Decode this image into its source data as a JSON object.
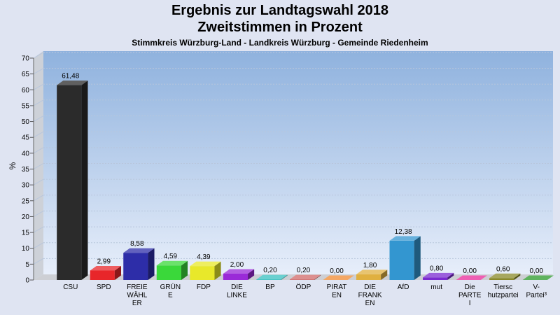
{
  "chart_data": {
    "type": "bar",
    "title": "Ergebnis zur Landtagswahl 2018",
    "subtitle": "Zweitstimmen in Prozent",
    "subtitle2": "Stimmkreis Würzburg-Land - Landkreis Würzburg - Gemeinde Riedenheim",
    "ylabel": "%",
    "ylim": [
      0,
      70
    ],
    "yticks": [
      0,
      5,
      10,
      15,
      20,
      25,
      30,
      35,
      40,
      45,
      50,
      55,
      60,
      65,
      70
    ],
    "grid": true,
    "categories": [
      [
        "CSU"
      ],
      [
        "SPD"
      ],
      [
        "FREIE",
        "WÄHL",
        "ER"
      ],
      [
        "GRÜN",
        "E"
      ],
      [
        "FDP"
      ],
      [
        "DIE",
        "LINKE"
      ],
      [
        "BP"
      ],
      [
        "ÖDP"
      ],
      [
        "PIRAT",
        "EN"
      ],
      [
        "DIE",
        "FRANK",
        "EN"
      ],
      [
        "AfD"
      ],
      [
        "mut"
      ],
      [
        "Die",
        "PARTE",
        "I"
      ],
      [
        "Tiersc",
        "hutzpartei"
      ],
      [
        "V-",
        "Partei³"
      ]
    ],
    "values": [
      61.48,
      2.99,
      8.58,
      4.59,
      4.39,
      2.0,
      0.2,
      0.2,
      0.0,
      1.8,
      12.38,
      0.8,
      0.0,
      0.6,
      0.0
    ],
    "value_labels": [
      "61,48",
      "2,99",
      "8,58",
      "4,59",
      "4,39",
      "2,00",
      "0,20",
      "0,20",
      "0,00",
      "1,80",
      "12,38",
      "0,80",
      "0,00",
      "0,60",
      "0,00"
    ],
    "colors": [
      "#2b2b2b",
      "#e8262a",
      "#2d2da8",
      "#3ad83a",
      "#e8e82a",
      "#9a2ad8",
      "#38c0c0",
      "#d06a6a",
      "#f08a30",
      "#e0b040",
      "#3396d0",
      "#7a2ad0",
      "#e82a9a",
      "#8a8a2a",
      "#2a9a2a"
    ]
  }
}
